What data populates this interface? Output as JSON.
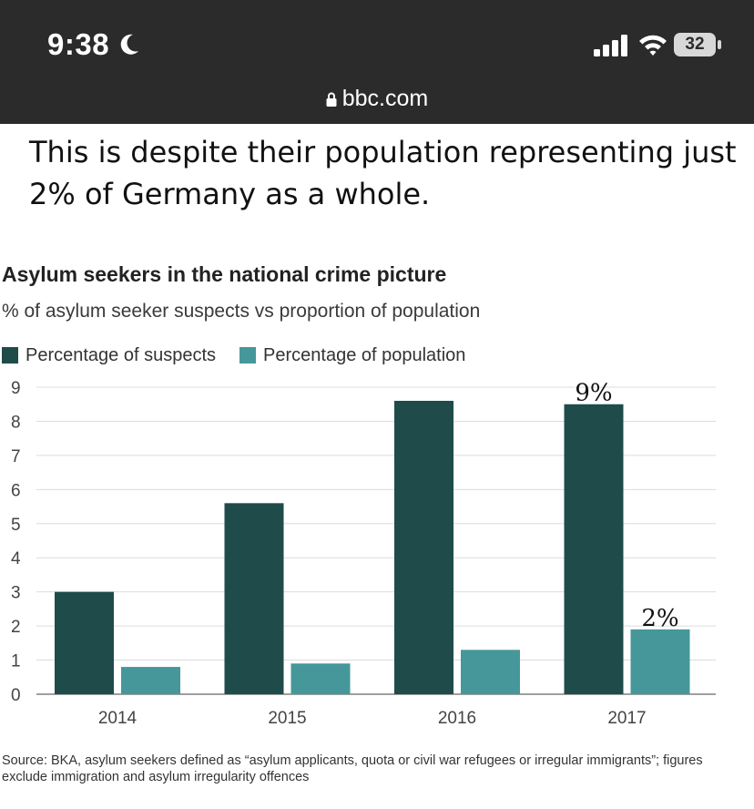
{
  "status_bar": {
    "time": "9:38",
    "battery": "32",
    "url": "bbc.com",
    "icons": [
      "moon-icon",
      "signal-icon",
      "wifi-icon",
      "battery-icon",
      "lock-icon"
    ]
  },
  "article": {
    "text": "This is despite their population representing just 2% of Germany as a whole."
  },
  "colors": {
    "suspects": "#1f4b4b",
    "population": "#46979a",
    "status_bg": "#2b2b2b"
  },
  "chart_data": {
    "type": "bar",
    "title": "Asylum seekers in the national crime picture",
    "subtitle": "% of asylum seeker suspects vs proportion of population",
    "categories": [
      "2014",
      "2015",
      "2016",
      "2017"
    ],
    "series": [
      {
        "name": "Percentage of suspects",
        "values": [
          3.0,
          5.6,
          8.6,
          8.5
        ]
      },
      {
        "name": "Percentage of population",
        "values": [
          0.8,
          0.9,
          1.3,
          1.9
        ]
      }
    ],
    "ylim": [
      0,
      9
    ],
    "yticks": [
      "0",
      "1",
      "2",
      "3",
      "4",
      "5",
      "6",
      "7",
      "8",
      "9"
    ],
    "grid": true,
    "legend": "top-left",
    "annotations": [
      {
        "text": "9%",
        "category": "2017",
        "series": 0
      },
      {
        "text": "2%",
        "category": "2017",
        "series": 1
      }
    ],
    "source": "Source: BKA, asylum seekers defined as “asylum applicants, quota or civil war refugees or irregular immigrants”; figures exclude immigration and asylum irregularity offences"
  }
}
